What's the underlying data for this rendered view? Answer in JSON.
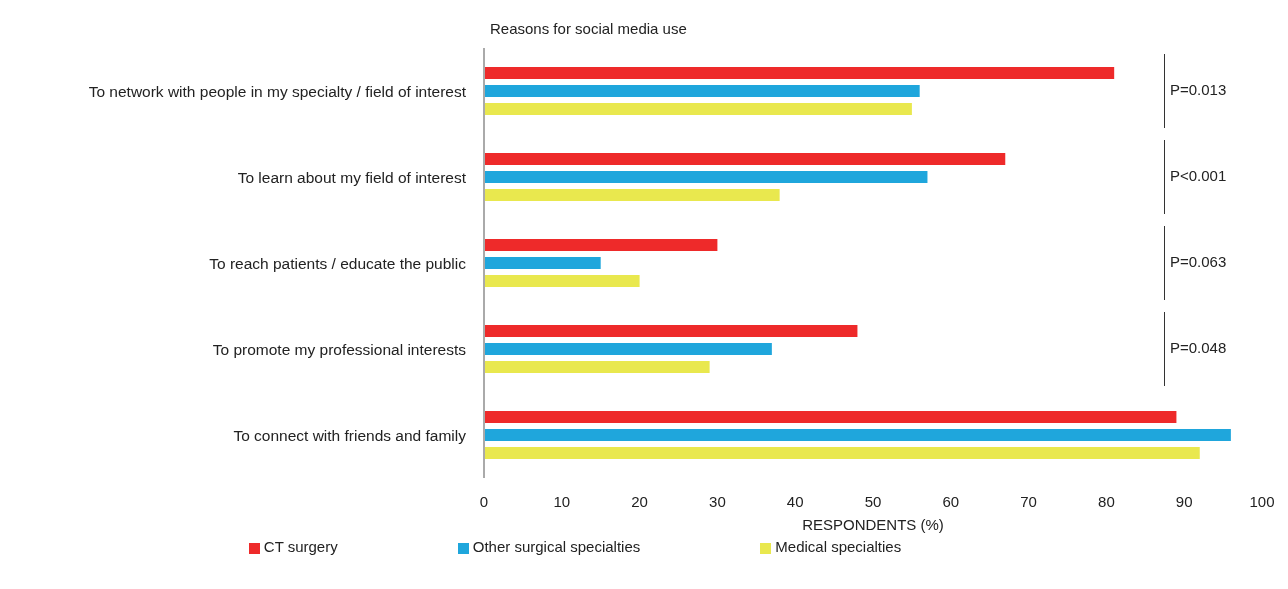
{
  "chart_data": {
    "type": "bar",
    "orientation": "horizontal",
    "title": "Reasons for social media use",
    "xlabel": "RESPONDENTS (%)",
    "categories": [
      "To network with people in my specialty / field of interest",
      "To learn about my field of interest",
      "To reach patients / educate the public",
      "To promote my professional interests",
      "To connect with friends and family"
    ],
    "series": [
      {
        "name": "CT surgery",
        "color": "#ee2a2a",
        "values": [
          81,
          67,
          30,
          48,
          89
        ]
      },
      {
        "name": "Other surgical specialties",
        "color": "#1fa6dc",
        "values": [
          56,
          57,
          15,
          37,
          96
        ]
      },
      {
        "name": "Medical specialties",
        "color": "#e9e84e",
        "values": [
          55,
          38,
          20,
          29,
          92
        ]
      }
    ],
    "xlim": [
      0,
      100
    ],
    "xticks": [
      0,
      10,
      20,
      30,
      40,
      50,
      60,
      70,
      80,
      90,
      100
    ],
    "grid": false,
    "legend": "bottom",
    "annotations": [
      "P=0.013",
      "P<0.001",
      "P=0.063",
      "P=0.048"
    ]
  }
}
